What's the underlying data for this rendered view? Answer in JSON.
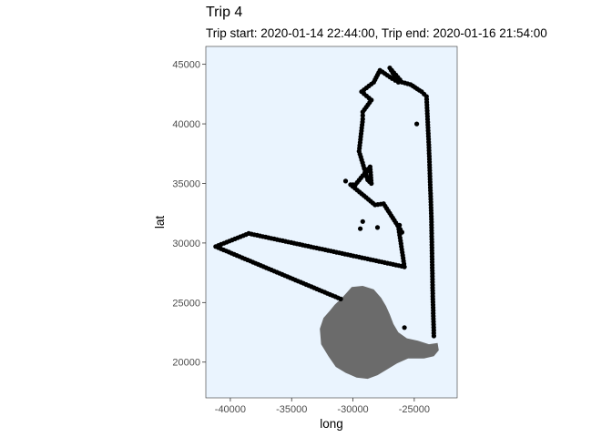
{
  "chart_data": {
    "type": "scatter",
    "title": "Trip 4",
    "subtitle": "Trip start: 2020-01-14 22:44:00, Trip end: 2020-01-16 21:54:00",
    "xlabel": "long",
    "ylabel": "lat",
    "xlim": [
      -42000,
      -21500
    ],
    "ylim": [
      17000,
      46500
    ],
    "xticks": [
      -40000,
      -35000,
      -30000,
      -25000
    ],
    "yticks": [
      20000,
      25000,
      30000,
      35000,
      40000,
      45000
    ],
    "xtick_labels": [
      "-40000",
      "-35000",
      "-30000",
      "-25000"
    ],
    "ytick_labels": [
      "20000",
      "25000",
      "30000",
      "35000",
      "40000",
      "45000"
    ],
    "grid": false,
    "panel_color": "#eaf4fe",
    "point_color": "#000000",
    "land_color": "#6b6b6b",
    "track_points": [
      [
        -31000,
        25300
      ],
      [
        -41200,
        29700
      ],
      [
        -38500,
        30800
      ],
      [
        -25800,
        28000
      ],
      [
        -26300,
        31400
      ],
      [
        -26000,
        30900
      ],
      [
        -27500,
        33300
      ],
      [
        -28200,
        33200
      ],
      [
        -30200,
        34900
      ],
      [
        -29800,
        34900
      ],
      [
        -28600,
        36400
      ],
      [
        -28500,
        35000
      ],
      [
        -28800,
        35300
      ],
      [
        -29500,
        37700
      ],
      [
        -29200,
        40400
      ],
      [
        -29200,
        41000
      ],
      [
        -28500,
        42000
      ],
      [
        -29300,
        42700
      ],
      [
        -28300,
        43500
      ],
      [
        -27800,
        44500
      ],
      [
        -26800,
        43800
      ],
      [
        -26300,
        43500
      ],
      [
        -27000,
        44700
      ],
      [
        -26000,
        43500
      ],
      [
        -25300,
        43300
      ],
      [
        -24400,
        42700
      ],
      [
        -24000,
        42300
      ],
      [
        -23800,
        38000
      ],
      [
        -23600,
        32000
      ],
      [
        -23500,
        26000
      ],
      [
        -23400,
        22200
      ]
    ],
    "scattered_points": [
      [
        -30600,
        35200
      ],
      [
        -29400,
        31200
      ],
      [
        -29200,
        31800
      ],
      [
        -28000,
        31300
      ],
      [
        -26200,
        31500
      ],
      [
        -25800,
        22900
      ],
      [
        -24800,
        40000
      ]
    ],
    "island_outline": [
      [
        -31500,
        24800
      ],
      [
        -30800,
        25500
      ],
      [
        -30100,
        26300
      ],
      [
        -29200,
        26400
      ],
      [
        -28300,
        26100
      ],
      [
        -27700,
        25400
      ],
      [
        -27300,
        24700
      ],
      [
        -27000,
        24000
      ],
      [
        -26700,
        23200
      ],
      [
        -26300,
        22500
      ],
      [
        -25600,
        22000
      ],
      [
        -24700,
        21800
      ],
      [
        -23800,
        21500
      ],
      [
        -23100,
        21600
      ],
      [
        -23000,
        21000
      ],
      [
        -23400,
        20500
      ],
      [
        -24200,
        20300
      ],
      [
        -25500,
        20300
      ],
      [
        -26400,
        19900
      ],
      [
        -27200,
        19400
      ],
      [
        -28000,
        18900
      ],
      [
        -28800,
        18600
      ],
      [
        -29700,
        18700
      ],
      [
        -30600,
        19100
      ],
      [
        -31400,
        19600
      ],
      [
        -32000,
        20500
      ],
      [
        -32600,
        21500
      ],
      [
        -32700,
        22800
      ],
      [
        -32400,
        23700
      ],
      [
        -31900,
        24300
      ]
    ]
  }
}
